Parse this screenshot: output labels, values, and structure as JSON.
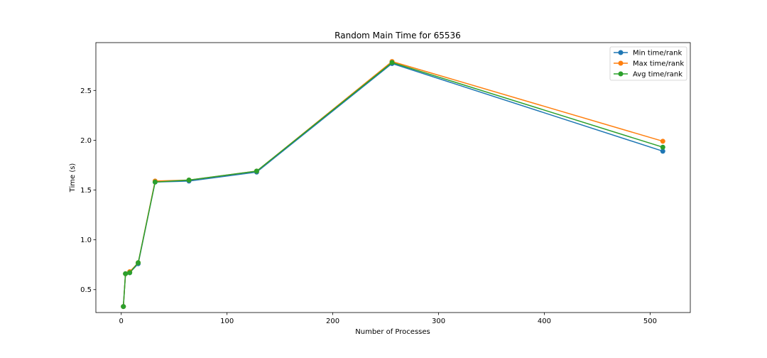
{
  "chart_data": {
    "type": "line",
    "title": "Random Main Time for 65536",
    "xlabel": "Number of Processes",
    "ylabel": "Time (s)",
    "xlim": [
      -24,
      538
    ],
    "ylim": [
      0.27,
      2.98
    ],
    "xticks": [
      0,
      100,
      200,
      300,
      400,
      500
    ],
    "yticks": [
      0.5,
      1.0,
      1.5,
      2.0,
      2.5
    ],
    "ytick_labels": [
      "0.5",
      "1.0",
      "1.5",
      "2.0",
      "2.5"
    ],
    "legend_position": "top-right",
    "x": [
      2,
      4,
      8,
      16,
      32,
      64,
      128,
      256,
      512
    ],
    "series": [
      {
        "name": "Min time/rank",
        "color": "#1f77b4",
        "values": [
          0.33,
          0.66,
          0.67,
          0.76,
          1.58,
          1.59,
          1.68,
          2.77,
          1.89
        ]
      },
      {
        "name": "Max time/rank",
        "color": "#ff7f0e",
        "values": [
          0.33,
          0.66,
          0.68,
          0.77,
          1.59,
          1.6,
          1.69,
          2.79,
          1.99
        ]
      },
      {
        "name": "Avg time/rank",
        "color": "#2ca02c",
        "values": [
          0.33,
          0.66,
          0.67,
          0.77,
          1.58,
          1.6,
          1.69,
          2.78,
          1.93
        ]
      }
    ]
  }
}
